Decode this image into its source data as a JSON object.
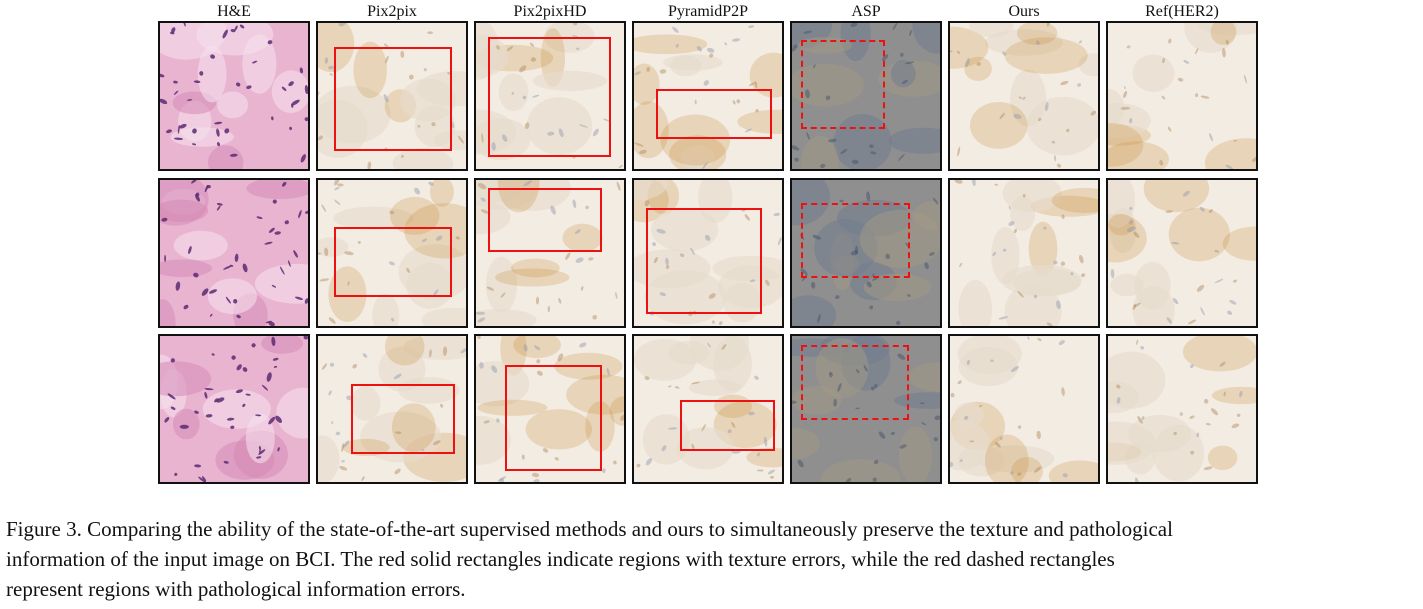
{
  "figure": {
    "columns": [
      {
        "label": "H&E"
      },
      {
        "label": "Pix2pix"
      },
      {
        "label": "Pix2pixHD"
      },
      {
        "label": "PyramidP2P"
      },
      {
        "label": "ASP"
      },
      {
        "label": "Ours"
      },
      {
        "label": "Ref(HER2)"
      }
    ],
    "colors": {
      "he_background": "#e9b4d0",
      "he_nuclei": "#5a2a72",
      "ihc_background": "#f3ece2",
      "ihc_dab_brown": "#c98b3c",
      "asp_background": "#8f8f8f",
      "error_red": "#ee1111",
      "frame": "#111111"
    },
    "marks": {
      "solid": "texture errors",
      "dashed": "pathological information errors"
    }
  },
  "caption": {
    "lines": [
      "Figure 3. Comparing the ability of the state-of-the-art supervised methods and ours to simultaneously preserve the texture and pathological",
      "information of the input image on BCI. The red solid rectangles indicate regions with texture errors, while the red dashed rectangles",
      "represent regions with pathological information errors."
    ]
  }
}
